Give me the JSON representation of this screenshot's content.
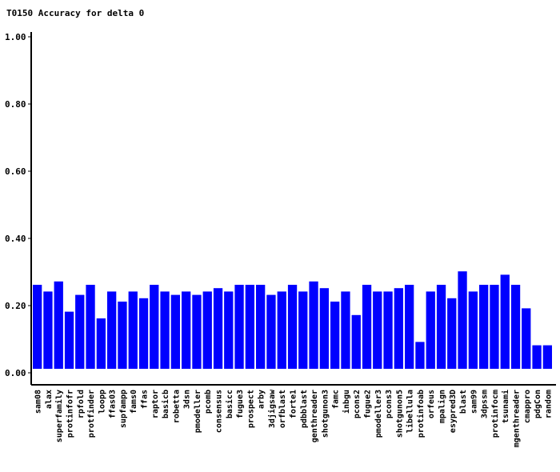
{
  "chart_data": {
    "type": "bar",
    "title": "T0150 Accuracy for delta 0",
    "xlabel": "",
    "ylabel": "",
    "ylim": [
      0,
      1.0
    ],
    "yticks": [
      "0.00",
      "0.20",
      "0.40",
      "0.60",
      "0.80",
      "1.00"
    ],
    "bar_color": "#0000ff",
    "categories": [
      "sam08",
      "alax",
      "superfamily",
      "protinfofr",
      "rpfold",
      "protfinder",
      "loopp",
      "ffas03",
      "supfampp",
      "fams0",
      "ffas",
      "raptor",
      "basicb",
      "robetta",
      "3dsn",
      "pmodeller",
      "pcomb",
      "consensus",
      "basicc",
      "fugue3",
      "prospect",
      "arby",
      "3djigsaw",
      "orfblast",
      "forte1",
      "pdbblast",
      "genthreader",
      "shotgunon3",
      "famc",
      "inbgu",
      "pcons2",
      "fugue2",
      "pmodeller3",
      "pcons3",
      "shotgunon5",
      "libellula",
      "protinfoab",
      "orfeus",
      "mpalign",
      "esypred3D",
      "blast",
      "sam99",
      "3dpssm",
      "protinfocm",
      "tsunami",
      "mgenthreader",
      "cmappro",
      "pdgCon",
      "random"
    ],
    "values": [
      0.25,
      0.23,
      0.26,
      0.17,
      0.22,
      0.25,
      0.15,
      0.23,
      0.2,
      0.23,
      0.21,
      0.25,
      0.23,
      0.22,
      0.23,
      0.22,
      0.23,
      0.24,
      0.23,
      0.25,
      0.25,
      0.25,
      0.22,
      0.23,
      0.25,
      0.23,
      0.26,
      0.24,
      0.2,
      0.23,
      0.16,
      0.25,
      0.23,
      0.23,
      0.24,
      0.25,
      0.08,
      0.23,
      0.25,
      0.21,
      0.29,
      0.23,
      0.25,
      0.25,
      0.28,
      0.25,
      0.18,
      0.07,
      0.07
    ]
  }
}
